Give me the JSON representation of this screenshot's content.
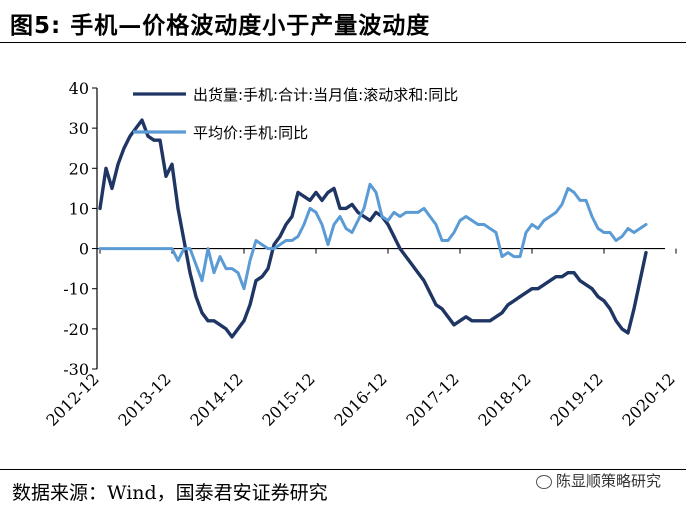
{
  "figure": {
    "title": "图5:  手机—价格波动度小于产量波动度",
    "source": "数据来源：Wind，国泰君安证券研究",
    "watermark": "陈显顺策略研究"
  },
  "colors": {
    "shipments": "#1f3564",
    "price": "#5b9bd5",
    "axis": "#000000"
  },
  "chart_data": {
    "type": "line",
    "title": "",
    "xlabel": "",
    "ylabel": "",
    "ylim": [
      -30,
      40
    ],
    "yticks": [
      40,
      30,
      20,
      10,
      0,
      -10,
      -20,
      -30
    ],
    "xticks": [
      "2012-12",
      "2013-12",
      "2014-12",
      "2015-12",
      "2016-12",
      "2017-12",
      "2018-12",
      "2019-12",
      "2020-12"
    ],
    "grid": false,
    "legend_position": "top-center",
    "x_start": "2012-12",
    "series": [
      {
        "name": "出货量:手机:合计:当月值:滚动求和:同比",
        "color": "#1f3564",
        "values": [
          10,
          20,
          15,
          21,
          25,
          28,
          30,
          32,
          28,
          27,
          27,
          18,
          21,
          10,
          2,
          -6,
          -12,
          -16,
          -18,
          -18,
          -19,
          -20,
          -22,
          -20,
          -18,
          -14,
          -8,
          -7,
          -5,
          1,
          3,
          6,
          8,
          14,
          13,
          12,
          14,
          12,
          14,
          15,
          10,
          10,
          11,
          9,
          8,
          7,
          9,
          8,
          6,
          3,
          0,
          -2,
          -4,
          -6,
          -8,
          -11,
          -14,
          -15,
          -17,
          -19,
          -18,
          -17,
          -18,
          -18,
          -18,
          -18,
          -17,
          -16,
          -14,
          -13,
          -12,
          -11,
          -10,
          -10,
          -9,
          -8,
          -7,
          -7,
          -6,
          -6,
          -8,
          -9,
          -10,
          -12,
          -13,
          -15,
          -18,
          -20,
          -21,
          -15,
          -8,
          -1
        ]
      },
      {
        "name": "平均价:手机:同比",
        "color": "#5b9bd5",
        "values": [
          0,
          0,
          0,
          0,
          0,
          0,
          0,
          0,
          0,
          0,
          0,
          0,
          0,
          -3,
          0,
          0,
          -4,
          -8,
          0,
          -6,
          -2,
          -5,
          -5,
          -6,
          -10,
          -3,
          2,
          1,
          0,
          0,
          1,
          2,
          2,
          3,
          6,
          10,
          9,
          6,
          1,
          6,
          8,
          5,
          4,
          7,
          10,
          16,
          14,
          8,
          7,
          9,
          8,
          9,
          9,
          9,
          10,
          8,
          6,
          2,
          2,
          4,
          7,
          8,
          7,
          6,
          6,
          5,
          4,
          -2,
          -1,
          -2,
          -2,
          4,
          6,
          5,
          7,
          8,
          9,
          11,
          15,
          14,
          12,
          12,
          8,
          5,
          4,
          4,
          2,
          3,
          5,
          4,
          5,
          6
        ]
      }
    ]
  }
}
